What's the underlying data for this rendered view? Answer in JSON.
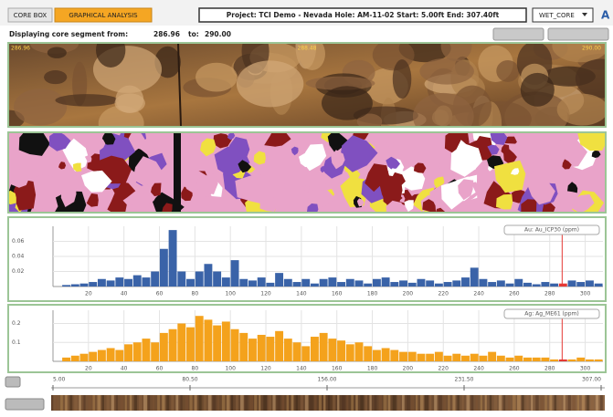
{
  "header": {
    "tabs": [
      "CORE BOX",
      "GRAPHICAL ANALYSIS"
    ],
    "project": "Project: TCI Demo - Nevada Hole: AM-11-02 Start: 5.00ft End: 307.40ft",
    "dataset": "WET_CORE"
  },
  "status": {
    "label": "Displaying core segment from:",
    "from": "286.96",
    "to_label": "to:",
    "to": "290.00"
  },
  "images": {
    "photo_labels": [
      "286.96",
      "288.48",
      "290.00"
    ]
  },
  "chart_data": [
    {
      "type": "histogram",
      "series": [
        {
          "name": "Au: Au_ICP30 (ppm)",
          "color": "#3a63a8",
          "values": [
            0,
            0.002,
            0.003,
            0.004,
            0.006,
            0.01,
            0.008,
            0.012,
            0.01,
            0.015,
            0.012,
            0.02,
            0.05,
            0.075,
            0.02,
            0.01,
            0.02,
            0.03,
            0.02,
            0.012,
            0.035,
            0.01,
            0.008,
            0.012,
            0.005,
            0.018,
            0.01,
            0.006,
            0.01,
            0.004,
            0.01,
            0.012,
            0.006,
            0.01,
            0.008,
            0.004,
            0.01,
            0.012,
            0.006,
            0.008,
            0.005,
            0.01,
            0.008,
            0.004,
            0.006,
            0.008,
            0.012,
            0.025,
            0.01,
            0.006,
            0.008,
            0.004,
            0.01,
            0.005,
            0.003,
            0.006,
            0.004,
            0.004,
            0.008,
            0.006,
            0.008,
            0.004
          ]
        }
      ],
      "bins": [
        0,
        5,
        10,
        15,
        20,
        25,
        30,
        35,
        40,
        45,
        50,
        55,
        60,
        65,
        70,
        75,
        80,
        85,
        90,
        95,
        100,
        105,
        110,
        115,
        120,
        125,
        130,
        135,
        140,
        145,
        150,
        155,
        160,
        165,
        170,
        175,
        180,
        185,
        190,
        195,
        200,
        205,
        210,
        215,
        220,
        225,
        230,
        235,
        240,
        245,
        250,
        255,
        260,
        265,
        270,
        275,
        280,
        285,
        290,
        295,
        300,
        305,
        310
      ],
      "xlim": [
        0,
        310
      ],
      "xticks": [
        20,
        40,
        60,
        80,
        100,
        120,
        140,
        160,
        180,
        200,
        220,
        240,
        260,
        280,
        300
      ],
      "ylim": [
        0,
        0.08
      ],
      "yticks": [
        0.02,
        0.04,
        0.06
      ],
      "grid": true,
      "highlight": {
        "x": 287,
        "color": "#e53935"
      }
    },
    {
      "type": "histogram",
      "series": [
        {
          "name": "Ag: Ag_ME61 (ppm)",
          "color": "#f4a21c",
          "values": [
            0,
            0.02,
            0.03,
            0.04,
            0.05,
            0.06,
            0.07,
            0.06,
            0.09,
            0.1,
            0.12,
            0.1,
            0.15,
            0.17,
            0.2,
            0.18,
            0.24,
            0.22,
            0.19,
            0.21,
            0.17,
            0.15,
            0.12,
            0.14,
            0.13,
            0.16,
            0.12,
            0.1,
            0.08,
            0.13,
            0.15,
            0.12,
            0.11,
            0.09,
            0.1,
            0.08,
            0.06,
            0.07,
            0.06,
            0.05,
            0.05,
            0.04,
            0.04,
            0.05,
            0.03,
            0.04,
            0.03,
            0.04,
            0.03,
            0.05,
            0.03,
            0.02,
            0.03,
            0.02,
            0.02,
            0.02,
            0.01,
            0.01,
            0.01,
            0.02,
            0.01,
            0.01
          ]
        }
      ],
      "bins": [
        0,
        5,
        10,
        15,
        20,
        25,
        30,
        35,
        40,
        45,
        50,
        55,
        60,
        65,
        70,
        75,
        80,
        85,
        90,
        95,
        100,
        105,
        110,
        115,
        120,
        125,
        130,
        135,
        140,
        145,
        150,
        155,
        160,
        165,
        170,
        175,
        180,
        185,
        190,
        195,
        200,
        205,
        210,
        215,
        220,
        225,
        230,
        235,
        240,
        245,
        250,
        255,
        260,
        265,
        270,
        275,
        280,
        285,
        290,
        295,
        300,
        305,
        310
      ],
      "xlim": [
        0,
        310
      ],
      "xticks": [
        20,
        40,
        60,
        80,
        100,
        120,
        140,
        160,
        180,
        200,
        220,
        240,
        260,
        280,
        300
      ],
      "ylim": [
        0,
        0.27
      ],
      "yticks": [
        0.1,
        0.2
      ],
      "grid": true,
      "highlight": {
        "x": 287,
        "color": "#e53935"
      }
    }
  ],
  "navigator": {
    "labels": [
      "5.00",
      "80.50",
      "156.00",
      "231.50",
      "307.00"
    ]
  }
}
